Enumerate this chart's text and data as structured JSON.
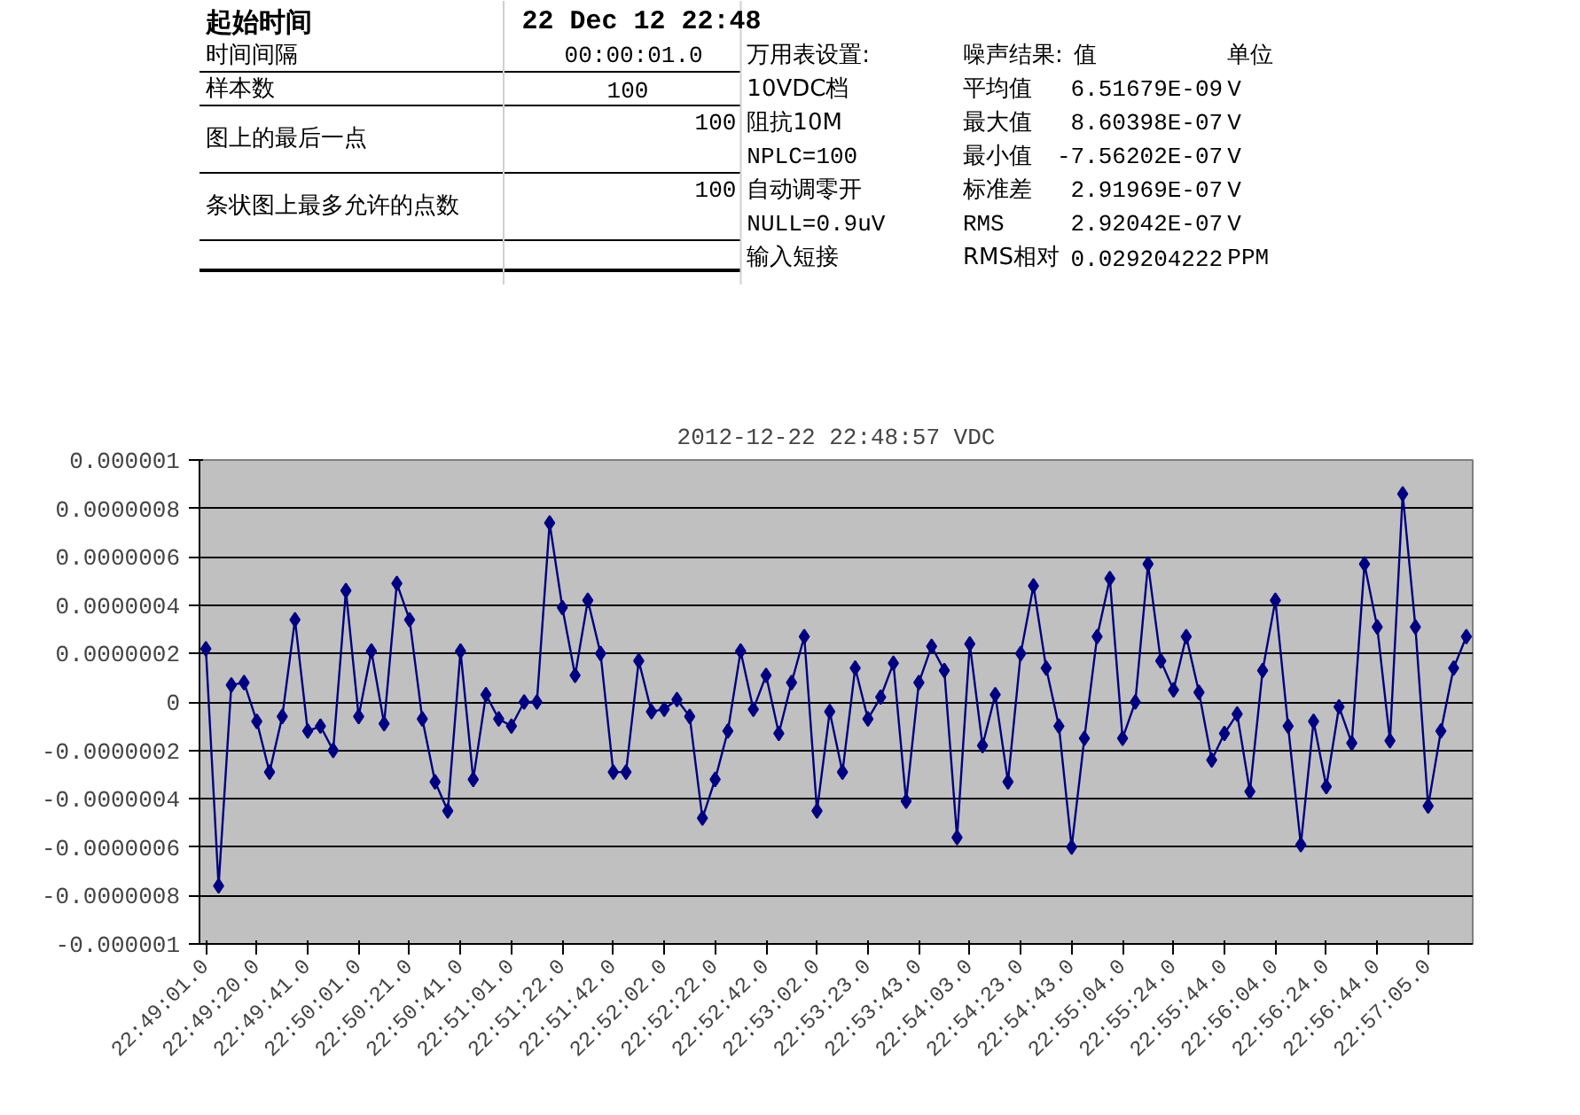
{
  "chart_data": [
    {
      "type": "other",
      "annotations": [
        "起始时间",
        "22 Dec 12 22:48",
        "时间间隔",
        "00:00:01.0",
        "样本数",
        "100",
        "图上的最后一点",
        "100",
        "条状图上最多允许的点数",
        "100",
        "万用表设置:",
        "10VDC档",
        "阻抗10M",
        "NPLC=100",
        "自动调零开",
        "NULL=0.9uV",
        "输入短接",
        "噪声结果:",
        "值",
        "单位",
        "平均值",
        "最大值",
        "最小值",
        "标准差",
        "RMS",
        "RMS相对",
        "6.51679E-09",
        "8.60398E-07",
        "-7.56202E-07",
        "2.91969E-07",
        "2.92042E-07",
        "0.029204222",
        "V",
        "V",
        "V",
        "V",
        "V",
        "PPM"
      ]
    },
    {
      "type": "line",
      "title": "2012-12-22 22:48:57 VDC",
      "marker": "diamond",
      "line_style": "solid",
      "grid": "y",
      "categories": [
        "22:49:01.0",
        null,
        null,
        null,
        "22:49:20.0",
        null,
        null,
        null,
        "22:49:41.0",
        null,
        null,
        null,
        "22:50:01.0",
        null,
        null,
        null,
        "22:50:21.0",
        null,
        null,
        null,
        "22:50:41.0",
        null,
        null,
        null,
        "22:51:01.0",
        null,
        null,
        null,
        "22:51:22.0",
        null,
        null,
        null,
        "22:51:42.0",
        null,
        null,
        null,
        "22:52:02.0",
        null,
        null,
        null,
        "22:52:22.0",
        null,
        null,
        null,
        "22:52:42.0",
        null,
        null,
        null,
        "22:53:02.0",
        null,
        null,
        null,
        "22:53:23.0",
        null,
        null,
        null,
        "22:53:43.0",
        null,
        null,
        null,
        "22:54:03.0",
        null,
        null,
        null,
        "22:54:23.0",
        null,
        null,
        null,
        "22:54:43.0",
        null,
        null,
        null,
        "22:55:04.0",
        null,
        null,
        null,
        "22:55:24.0",
        null,
        null,
        null,
        "22:55:44.0",
        null,
        null,
        null,
        "22:56:04.0",
        null,
        null,
        null,
        "22:56:24.0",
        null,
        null,
        null,
        "22:56:44.0",
        null,
        null,
        null,
        "22:57:05.0",
        null,
        null,
        null
      ],
      "series": [
        {
          "color": "#000080",
          "values": [
            2.2e-07,
            -7.6e-07,
            7e-08,
            8e-08,
            -8e-08,
            -2.9e-07,
            -6e-08,
            3.4e-07,
            -1.2e-07,
            -1e-07,
            -2e-07,
            4.6e-07,
            -6e-08,
            2.1e-07,
            -9e-08,
            4.9e-07,
            3.4e-07,
            -7e-08,
            -3.3e-07,
            -4.5e-07,
            2.1e-07,
            -3.2e-07,
            3e-08,
            -7e-08,
            -1e-07,
            0,
            0,
            7.4e-07,
            3.9e-07,
            1.1e-07,
            4.2e-07,
            2e-07,
            -2.9e-07,
            -2.9e-07,
            1.7e-07,
            -4e-08,
            -3e-08,
            1e-08,
            -6e-08,
            -4.8e-07,
            -3.2e-07,
            -1.2e-07,
            2.1e-07,
            -3e-08,
            1.1e-07,
            -1.3e-07,
            8e-08,
            2.7e-07,
            -4.5e-07,
            -4e-08,
            -2.9e-07,
            1.4e-07,
            -7e-08,
            2e-08,
            1.6e-07,
            -4.1e-07,
            8e-08,
            2.3e-07,
            1.3e-07,
            -5.6e-07,
            2.4e-07,
            -1.8e-07,
            3e-08,
            -3.3e-07,
            2e-07,
            4.8e-07,
            1.4e-07,
            -1e-07,
            -6e-07,
            -1.5e-07,
            2.7e-07,
            5.1e-07,
            -1.5e-07,
            0,
            5.7e-07,
            1.7e-07,
            5e-08,
            2.7e-07,
            4e-08,
            -2.4e-07,
            -1.3e-07,
            -5e-08,
            -3.7e-07,
            1.3e-07,
            4.2e-07,
            -1e-07,
            -5.9e-07,
            -8e-08,
            -3.5e-07,
            -2e-08,
            -1.7e-07,
            5.7e-07,
            3.1e-07,
            -1.6e-07,
            8.6e-07,
            3.1e-07,
            -4.3e-07,
            -1.2e-07,
            1.4e-07,
            2.7e-07
          ]
        }
      ],
      "ylim": [
        -1e-06,
        1e-06
      ],
      "yticks": [
        {
          "value": -1e-06,
          "label": "-0.000001"
        },
        {
          "value": -8e-07,
          "label": "-0.0000008"
        },
        {
          "value": -6e-07,
          "label": "-0.0000006"
        },
        {
          "value": -4e-07,
          "label": "-0.0000004"
        },
        {
          "value": -2e-07,
          "label": "-0.0000002"
        },
        {
          "value": 0,
          "label": "0"
        },
        {
          "value": 2e-07,
          "label": "0.0000002"
        },
        {
          "value": 4e-07,
          "label": "0.0000004"
        },
        {
          "value": 6e-07,
          "label": "0.0000006"
        },
        {
          "value": 8e-07,
          "label": "0.0000008"
        },
        {
          "value": 1e-06,
          "label": "0.000001"
        }
      ]
    }
  ]
}
